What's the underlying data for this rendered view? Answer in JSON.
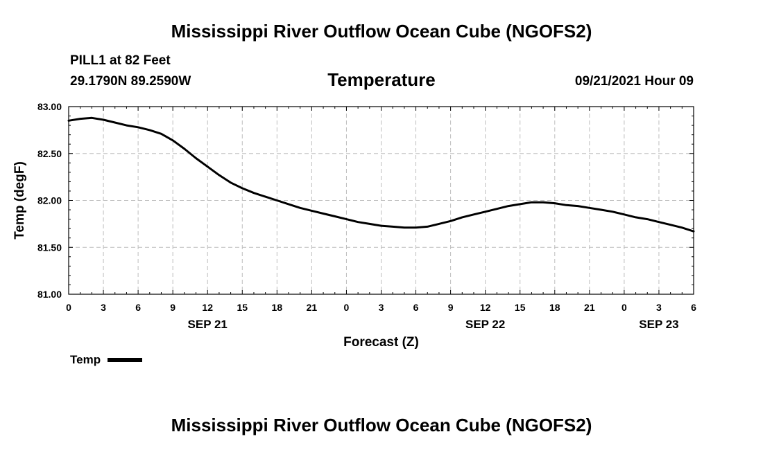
{
  "header": {
    "title": "Mississippi River Outflow Ocean Cube (NGOFS2)",
    "station": "PILL1 at 82 Feet",
    "coords": "29.1790N  89.2590W",
    "variable": "Temperature",
    "datetime": "09/21/2021 Hour 09"
  },
  "footer": {
    "title": "Mississippi River Outflow Ocean Cube (NGOFS2)"
  },
  "legend": {
    "label": "Temp"
  },
  "chart_data": {
    "type": "line",
    "title": "Temperature",
    "xlabel": "Forecast (Z)",
    "ylabel": "Temp (degF)",
    "ylim": [
      81.0,
      83.0
    ],
    "xlim": [
      0,
      54
    ],
    "grid": true,
    "yticks": [
      81.0,
      81.5,
      82.0,
      82.5,
      83.0
    ],
    "ytick_labels": [
      "81.00",
      "81.50",
      "82.00",
      "82.50",
      "83.00"
    ],
    "xticks": [
      0,
      3,
      6,
      9,
      12,
      15,
      18,
      21,
      24,
      27,
      30,
      33,
      36,
      39,
      42,
      45,
      48,
      51,
      54
    ],
    "xtick_labels": [
      "0",
      "3",
      "6",
      "9",
      "12",
      "15",
      "18",
      "21",
      "0",
      "3",
      "6",
      "9",
      "12",
      "15",
      "18",
      "21",
      "0",
      "3",
      "6"
    ],
    "date_labels": [
      {
        "x": 12,
        "label": "SEP 21"
      },
      {
        "x": 36,
        "label": "SEP 22"
      },
      {
        "x": 51,
        "label": "SEP 23"
      }
    ],
    "legend_position": "bottom-left",
    "series": [
      {
        "name": "Temp",
        "color": "#000000",
        "x": [
          0,
          1,
          2,
          3,
          4,
          5,
          6,
          7,
          8,
          9,
          10,
          11,
          12,
          13,
          14,
          15,
          16,
          17,
          18,
          19,
          20,
          21,
          22,
          23,
          24,
          25,
          26,
          27,
          28,
          29,
          30,
          31,
          32,
          33,
          34,
          35,
          36,
          37,
          38,
          39,
          40,
          41,
          42,
          43,
          44,
          45,
          46,
          47,
          48,
          49,
          50,
          51,
          52,
          53,
          54
        ],
        "values": [
          82.85,
          82.87,
          82.88,
          82.86,
          82.83,
          82.8,
          82.78,
          82.75,
          82.71,
          82.64,
          82.55,
          82.45,
          82.36,
          82.27,
          82.19,
          82.13,
          82.08,
          82.04,
          82.0,
          81.96,
          81.92,
          81.89,
          81.86,
          81.83,
          81.8,
          81.77,
          81.75,
          81.73,
          81.72,
          81.71,
          81.71,
          81.72,
          81.75,
          81.78,
          81.82,
          81.85,
          81.88,
          81.91,
          81.94,
          81.96,
          81.98,
          81.98,
          81.97,
          81.95,
          81.94,
          81.92,
          81.9,
          81.88,
          81.85,
          81.82,
          81.8,
          81.77,
          81.74,
          81.71,
          81.67
        ]
      }
    ]
  }
}
